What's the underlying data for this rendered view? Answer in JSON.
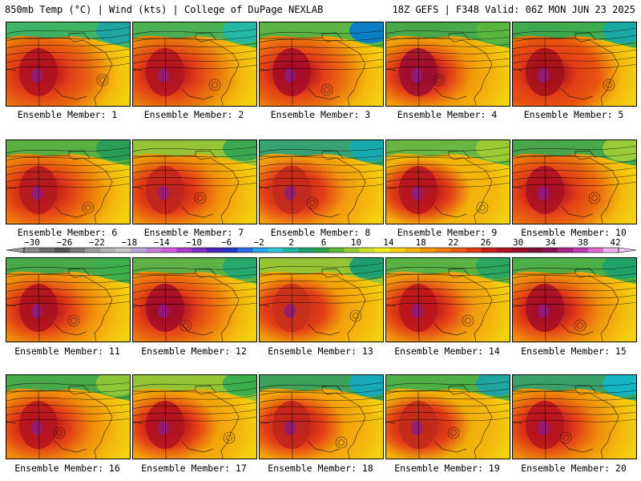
{
  "header": {
    "left": "850mb Temp (°C) | Wind (kts) | College of DuPage NEXLAB",
    "right": "18Z GEFS | F348 Valid: 06Z MON JUN 23 2025"
  },
  "members": [
    {
      "label": "Ensemble Member: 1",
      "north": "#2fb36b",
      "northeast": "#1fa4a0",
      "core": "#b0121f",
      "south": "#e86a10"
    },
    {
      "label": "Ensemble Member: 2",
      "north": "#3db05a",
      "northeast": "#24b7a3",
      "core": "#b11420",
      "south": "#e8760e"
    },
    {
      "label": "Ensemble Member: 3",
      "north": "#4fb34a",
      "northeast": "#0d7fc7",
      "core": "#a80d26",
      "south": "#ea7010"
    },
    {
      "label": "Ensemble Member: 4",
      "north": "#3aa84f",
      "northeast": "#56b63d",
      "core": "#9f0d30",
      "south": "#f09a0a"
    },
    {
      "label": "Ensemble Member: 5",
      "north": "#2faa55",
      "northeast": "#1aa8a5",
      "core": "#a5101c",
      "south": "#e8540f"
    },
    {
      "label": "Ensemble Member: 6",
      "north": "#4baf45",
      "northeast": "#2a9e58",
      "core": "#b51a1e",
      "south": "#ee7a0c"
    },
    {
      "label": "Ensemble Member: 7",
      "north": "#8cc63a",
      "northeast": "#3ca850",
      "core": "#c0241c",
      "south": "#f08c0a"
    },
    {
      "label": "Ensemble Member: 8",
      "north": "#27a07a",
      "northeast": "#1ba9b0",
      "core": "#c22a1b",
      "south": "#f29710"
    },
    {
      "label": "Ensemble Member: 9",
      "north": "#5cb546",
      "northeast": "#9ccb34",
      "core": "#b5141f",
      "south": "#f3b409"
    },
    {
      "label": "Ensemble Member: 10",
      "north": "#3aa550",
      "northeast": "#9acb38",
      "core": "#aa1025",
      "south": "#e96a0f"
    },
    {
      "label": "Ensemble Member: 11",
      "north": "#3aa850",
      "northeast": "#3fae4c",
      "core": "#ad101f",
      "south": "#ef8a0c"
    },
    {
      "label": "Ensemble Member: 12",
      "north": "#4fb04a",
      "northeast": "#26a86e",
      "core": "#a30d28",
      "south": "#ec760e"
    },
    {
      "label": "Ensemble Member: 13",
      "north": "#8cc63a",
      "northeast": "#1f9f70",
      "core": "#c8301a",
      "south": "#f2a00a"
    },
    {
      "label": "Ensemble Member: 14",
      "north": "#4cb148",
      "northeast": "#2aa65e",
      "core": "#b8151d",
      "south": "#f09510"
    },
    {
      "label": "Ensemble Member: 15",
      "north": "#3fae4c",
      "northeast": "#21a26a",
      "core": "#a50e27",
      "south": "#ee8a0c"
    },
    {
      "label": "Ensemble Member: 16",
      "north": "#3aa850",
      "northeast": "#8ec63a",
      "core": "#b5141f",
      "south": "#ef8a0c"
    },
    {
      "label": "Ensemble Member: 17",
      "north": "#8cc63a",
      "northeast": "#3fae4c",
      "core": "#b0121f",
      "south": "#f2a00a"
    },
    {
      "label": "Ensemble Member: 18",
      "north": "#2e9f63",
      "northeast": "#18a9b8",
      "core": "#c0241c",
      "south": "#f2a00a"
    },
    {
      "label": "Ensemble Member: 19",
      "north": "#3fae4c",
      "northeast": "#1fa4a0",
      "core": "#c22a1b",
      "south": "#f0b00a"
    },
    {
      "label": "Ensemble Member: 20",
      "north": "#2aa070",
      "northeast": "#16b3c3",
      "core": "#b5141f",
      "south": "#ee8a0c"
    }
  ],
  "colorbar": {
    "ticks": [
      "−30",
      "−26",
      "−22",
      "−18",
      "−14",
      "−10",
      "−6",
      "−2",
      "2",
      "6",
      "10",
      "14",
      "18",
      "22",
      "26",
      "30",
      "34",
      "38",
      "42"
    ],
    "colors": [
      "#8a8a8a",
      "#6e6e6e",
      "#555555",
      "#7a7a7a",
      "#9c9c9c",
      "#b3b3b3",
      "#c9c9c9",
      "#b9a7d8",
      "#c47fd6",
      "#d55bdc",
      "#a83bd0",
      "#7d2fc4",
      "#4b23b8",
      "#2439c8",
      "#2a6ee0",
      "#2aa6ea",
      "#30c6d8",
      "#22b7a3",
      "#1f9f70",
      "#2aa64a",
      "#5fb73a",
      "#9ccb34",
      "#cfe02a",
      "#f5ef1a",
      "#f8d20e",
      "#f6b40a",
      "#f39a0a",
      "#ef7c10",
      "#e95a12",
      "#e03a16",
      "#c8201c",
      "#b01423",
      "#97102b",
      "#7e1030",
      "#8b1456",
      "#a8268a",
      "#c23ab0",
      "#d86ad0",
      "#f0b0f0"
    ]
  }
}
